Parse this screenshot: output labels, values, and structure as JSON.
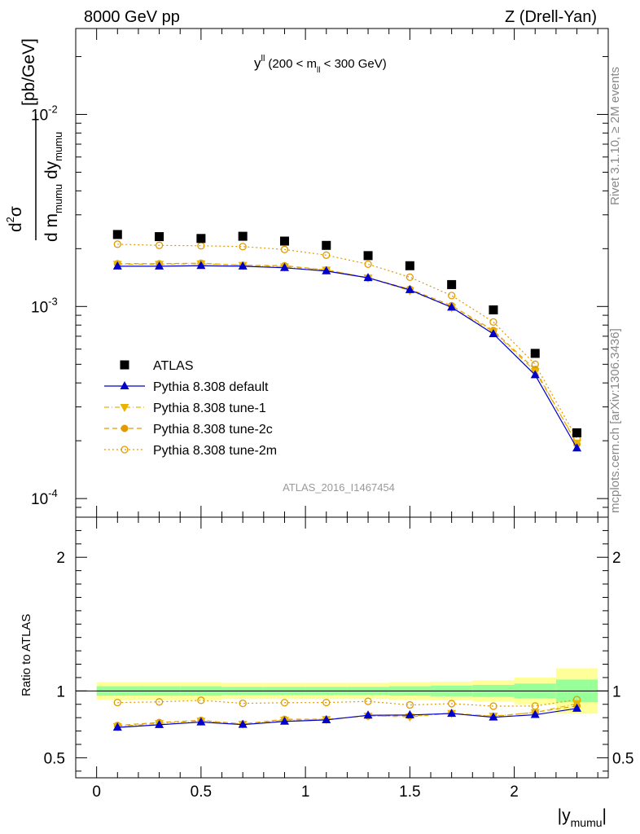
{
  "header": {
    "left": "8000 GeV pp",
    "right": "Z (Drell-Yan)"
  },
  "side_labels": {
    "rivet": "Rivet 3.1.10, ≥ 2M events",
    "mcplots": "mcplots.cern.ch [arXiv:1306.3436]"
  },
  "annotation": {
    "main": "y",
    "sup": "ll",
    "cond_open": "(200 < m",
    "cond_sub": "ll",
    "cond_close": " < 300 GeV)"
  },
  "analysis_id": "ATLAS_2016_I1467454",
  "legend": [
    {
      "label": "ATLAS",
      "color": "#000000",
      "marker": "square",
      "line": "none"
    },
    {
      "label": "Pythia 8.308 default",
      "color": "#0000cc",
      "marker": "triangle-up",
      "line": "solid"
    },
    {
      "label": "Pythia 8.308 tune-1",
      "color": "#e8b400",
      "marker": "triangle-down",
      "line": "dashdot"
    },
    {
      "label": "Pythia 8.308 tune-2c",
      "color": "#e39a00",
      "marker": "circle",
      "line": "dashed"
    },
    {
      "label": "Pythia 8.308 tune-2m",
      "color": "#e39a00",
      "marker": "circle-open",
      "line": "dotted"
    }
  ],
  "chart_data": [
    {
      "type": "scatter",
      "panel": "main",
      "yscale": "log",
      "ylabel_parts": {
        "num": "d",
        "num_sup": "2",
        "num_sym": "σ",
        "den": "d m",
        "den_sub": "mumu",
        "den2": " dy",
        "den2_sub": "mumu",
        "unit": "[pb/GeV]"
      },
      "xlim": [
        -0.1,
        2.45
      ],
      "ylim": [
        8e-05,
        0.028
      ],
      "y_tick_labels": [
        {
          "base": "10",
          "exp": "-4",
          "value": 0.0001
        },
        {
          "base": "10",
          "exp": "-3",
          "value": 0.001
        },
        {
          "base": "10",
          "exp": "-2",
          "value": 0.01
        }
      ],
      "x": [
        0.1,
        0.3,
        0.5,
        0.7,
        0.9,
        1.1,
        1.3,
        1.5,
        1.7,
        1.9,
        2.1,
        2.3
      ],
      "series": [
        {
          "name": "ATLAS",
          "values": [
            0.00237,
            0.00231,
            0.00226,
            0.00232,
            0.00219,
            0.00208,
            0.00184,
            0.00163,
            0.0013,
            0.00096,
            0.00057,
            0.00022
          ]
        },
        {
          "name": "Pythia 8.308 default",
          "values": [
            0.00162,
            0.00162,
            0.00163,
            0.00162,
            0.00159,
            0.00153,
            0.00141,
            0.00122,
            0.00099,
            0.00072,
            0.00044,
            0.000183
          ]
        },
        {
          "name": "Pythia 8.308 tune-1",
          "values": [
            0.00166,
            0.00166,
            0.00167,
            0.00164,
            0.00161,
            0.00155,
            0.00141,
            0.00121,
            0.00099,
            0.00074,
            0.00046,
            0.000195
          ]
        },
        {
          "name": "Pythia 8.308 tune-2c",
          "values": [
            0.00167,
            0.00167,
            0.00168,
            0.00164,
            0.00163,
            0.00155,
            0.00141,
            0.00123,
            0.00101,
            0.00075,
            0.00047,
            0.000192
          ]
        },
        {
          "name": "Pythia 8.308 tune-2m",
          "values": [
            0.00211,
            0.00208,
            0.00207,
            0.00205,
            0.00198,
            0.00185,
            0.00166,
            0.00142,
            0.00114,
            0.00083,
            0.0005,
            0.000205
          ]
        }
      ]
    },
    {
      "type": "scatter",
      "panel": "ratio",
      "ylabel": "Ratio to ATLAS",
      "xlabel_parts": {
        "main": "|y",
        "sub": "mumu",
        "close": "|"
      },
      "xlim": [
        -0.1,
        2.45
      ],
      "ylim": [
        0.35,
        2.3
      ],
      "x_tick_labels": [
        "0",
        "0.5",
        "1",
        "1.5",
        "2"
      ],
      "x_tick_values": [
        0,
        0.5,
        1,
        1.5,
        2
      ],
      "y_tick_labels": [
        "0.5",
        "1",
        "2"
      ],
      "y_tick_values": [
        0.5,
        1,
        2
      ],
      "x": [
        0.1,
        0.3,
        0.5,
        0.7,
        0.9,
        1.1,
        1.3,
        1.5,
        1.7,
        1.9,
        2.1,
        2.3
      ],
      "x_edges": [
        0.0,
        0.2,
        0.4,
        0.6,
        0.8,
        1.0,
        1.2,
        1.4,
        1.6,
        1.8,
        2.0,
        2.2,
        2.4
      ],
      "band_stat": [
        0.035,
        0.035,
        0.035,
        0.03,
        0.03,
        0.03,
        0.03,
        0.035,
        0.04,
        0.045,
        0.055,
        0.085
      ],
      "band_total": [
        0.065,
        0.065,
        0.065,
        0.06,
        0.06,
        0.06,
        0.06,
        0.065,
        0.07,
        0.08,
        0.1,
        0.17
      ],
      "series": [
        {
          "name": "Pythia 8.308 default",
          "values": [
            0.727,
            0.747,
            0.767,
            0.748,
            0.772,
            0.783,
            0.818,
            0.82,
            0.831,
            0.803,
            0.822,
            0.869
          ]
        },
        {
          "name": "Pythia 8.308 tune-1",
          "values": [
            0.735,
            0.757,
            0.775,
            0.752,
            0.781,
            0.788,
            0.813,
            0.806,
            0.833,
            0.812,
            0.839,
            0.905
          ]
        },
        {
          "name": "Pythia 8.308 tune-2c",
          "values": [
            0.742,
            0.764,
            0.78,
            0.753,
            0.788,
            0.788,
            0.813,
            0.813,
            0.834,
            0.808,
            0.84,
            0.888
          ]
        },
        {
          "name": "Pythia 8.308 tune-2m",
          "values": [
            0.913,
            0.918,
            0.93,
            0.907,
            0.912,
            0.913,
            0.922,
            0.895,
            0.905,
            0.886,
            0.887,
            0.935
          ]
        }
      ]
    }
  ]
}
